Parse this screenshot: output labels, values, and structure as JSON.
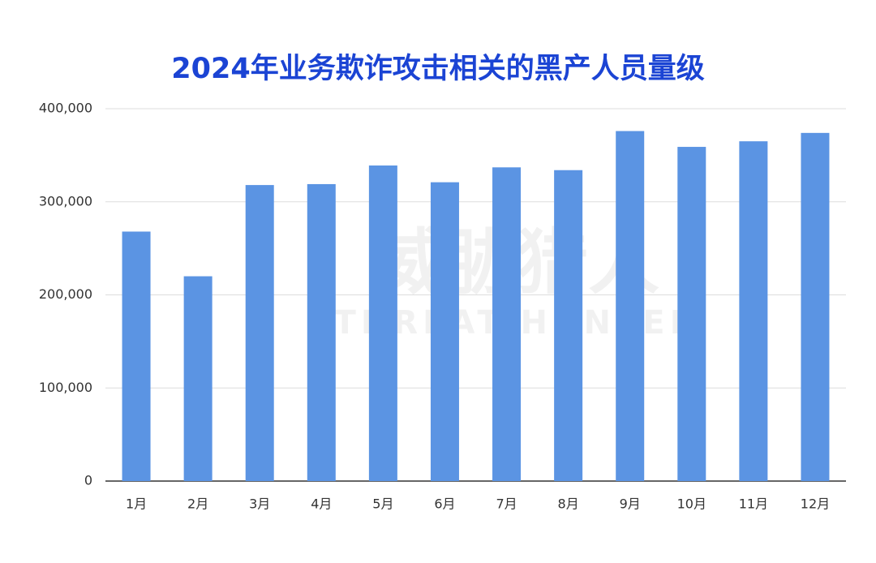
{
  "chart_data": {
    "type": "bar",
    "title": "2024年业务欺诈攻击相关的黑产人员量级",
    "watermark": {
      "brand": "威胁猎人",
      "brand_en": "THREAT HUNTER"
    },
    "categories": [
      "1月",
      "2月",
      "3月",
      "4月",
      "5月",
      "6月",
      "7月",
      "8月",
      "9月",
      "10月",
      "11月",
      "12月"
    ],
    "values": [
      268000,
      220000,
      318000,
      319000,
      339000,
      321000,
      337000,
      334000,
      376000,
      359000,
      365000,
      374000
    ],
    "color": "#5b94e3",
    "ylim": [
      0,
      400000
    ],
    "yticks": [
      0,
      {
        "value": 100000,
        "label": "100,000"
      },
      {
        "value": 200000,
        "label": "200,000"
      },
      {
        "value": 300000,
        "label": "300,000"
      },
      {
        "value": 400000,
        "label": "400,000"
      }
    ],
    "grid": true
  }
}
